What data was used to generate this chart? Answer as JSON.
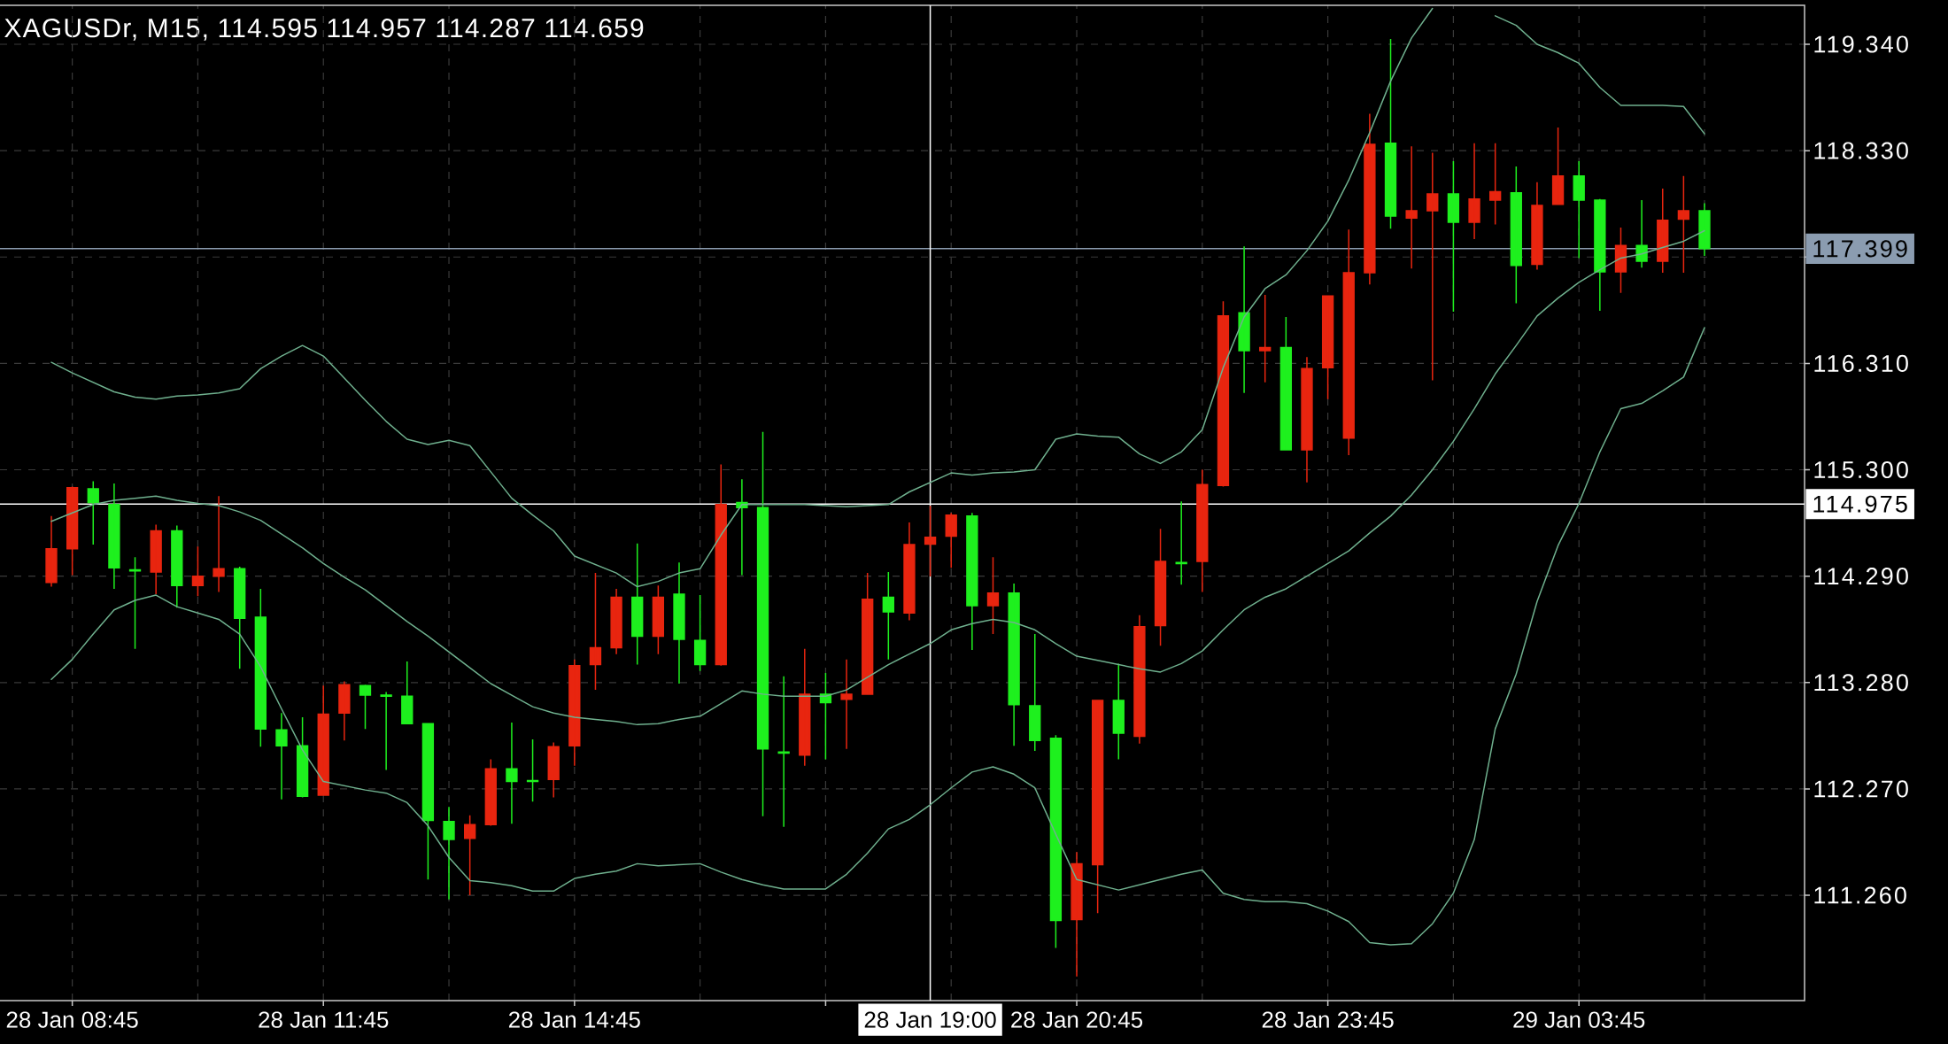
{
  "chart_data": {
    "type": "candlestick",
    "title": "XAGUSDr, M15, 114.595 114.957 114.287 114.659",
    "categories": [
      null,
      "28 Jan 08:45",
      null,
      null,
      null,
      null,
      null,
      null,
      null,
      null,
      null,
      null,
      null,
      "28 Jan 11:45",
      null,
      null,
      null,
      null,
      null,
      null,
      null,
      null,
      null,
      null,
      null,
      "28 Jan 14:45",
      null,
      null,
      null,
      null,
      null,
      null,
      null,
      null,
      null,
      null,
      null,
      null,
      null,
      null,
      null,
      null,
      "28 Jan 19:00",
      null,
      null,
      null,
      null,
      null,
      null,
      "28 Jan 20:45",
      null,
      null,
      null,
      null,
      null,
      null,
      null,
      null,
      null,
      null,
      null,
      "28 Jan 23:45",
      null,
      null,
      null,
      null,
      null,
      null,
      null,
      null,
      null,
      null,
      null,
      "29 Jan 03:45",
      null,
      null,
      null,
      null,
      null,
      null
    ],
    "series": [
      {
        "ohlc": [
          [
            114.23,
            114.86,
            114.19,
            114.55
          ],
          [
            114.55,
            115.14,
            114.3,
            115.13
          ],
          [
            115.12,
            115.19,
            114.59,
            114.99
          ],
          [
            114.97,
            115.17,
            114.17,
            114.37
          ],
          [
            114.35,
            114.47,
            113.6,
            114.34
          ],
          [
            114.33,
            114.78,
            114.12,
            114.72
          ],
          [
            114.72,
            114.77,
            113.99,
            114.2
          ],
          [
            114.2,
            114.57,
            114.1,
            114.29
          ],
          [
            114.29,
            115.05,
            114.14,
            114.36
          ],
          [
            114.36,
            114.38,
            113.41,
            113.89
          ],
          [
            113.9,
            114.17,
            112.67,
            112.84
          ],
          [
            112.83,
            112.99,
            112.17,
            112.68
          ],
          [
            112.68,
            112.95,
            112.19,
            112.2
          ],
          [
            112.21,
            113.25,
            112.21,
            112.98
          ],
          [
            112.99,
            113.29,
            112.73,
            113.26
          ],
          [
            113.25,
            113.26,
            112.84,
            113.16
          ],
          [
            113.16,
            113.19,
            112.45,
            113.15
          ],
          [
            113.15,
            113.48,
            112.89,
            112.89
          ],
          [
            112.89,
            112.89,
            111.41,
            111.97
          ],
          [
            111.96,
            112.1,
            111.22,
            111.79
          ],
          [
            111.8,
            112.02,
            111.26,
            111.93
          ],
          [
            111.93,
            112.55,
            111.92,
            112.46
          ],
          [
            112.46,
            112.9,
            111.94,
            112.34
          ],
          [
            112.35,
            112.74,
            112.15,
            112.34
          ],
          [
            112.36,
            112.71,
            112.19,
            112.67
          ],
          [
            112.68,
            113.5,
            112.49,
            113.44
          ],
          [
            113.45,
            114.32,
            113.21,
            113.61
          ],
          [
            113.61,
            114.17,
            113.55,
            114.09
          ],
          [
            114.09,
            114.6,
            113.45,
            113.72
          ],
          [
            113.72,
            114.2,
            113.55,
            114.09
          ],
          [
            114.12,
            114.42,
            113.27,
            113.69
          ],
          [
            113.68,
            114.11,
            113.39,
            113.45
          ],
          [
            113.45,
            115.35,
            113.44,
            114.97
          ],
          [
            114.99,
            115.21,
            114.3,
            114.94
          ],
          [
            114.94,
            115.66,
            112.01,
            112.65
          ],
          [
            112.62,
            113.34,
            111.91,
            112.61
          ],
          [
            112.59,
            113.6,
            112.49,
            113.17
          ],
          [
            113.17,
            113.37,
            112.55,
            113.09
          ],
          [
            113.12,
            113.5,
            112.65,
            113.17
          ],
          [
            113.17,
            114.32,
            113.17,
            114.07
          ],
          [
            114.09,
            114.33,
            113.5,
            113.95
          ],
          [
            113.94,
            114.8,
            113.87,
            114.59
          ],
          [
            114.595,
            114.957,
            114.287,
            114.659
          ],
          [
            114.67,
            114.89,
            114.37,
            114.87
          ],
          [
            114.86,
            114.89,
            113.59,
            114.01
          ],
          [
            114.01,
            114.47,
            113.74,
            114.13
          ],
          [
            114.13,
            114.22,
            112.68,
            113.07
          ],
          [
            113.06,
            113.74,
            112.63,
            112.73
          ],
          [
            112.75,
            112.78,
            110.76,
            111.02
          ],
          [
            111.03,
            111.67,
            110.49,
            111.56
          ],
          [
            111.55,
            113.11,
            111.09,
            113.11
          ],
          [
            113.11,
            113.46,
            112.55,
            112.8
          ],
          [
            112.77,
            113.92,
            112.7,
            113.81
          ],
          [
            113.82,
            114.74,
            113.63,
            114.43
          ],
          [
            114.42,
            115.0,
            114.21,
            114.41
          ],
          [
            114.43,
            115.3,
            114.14,
            115.16
          ],
          [
            115.15,
            116.9,
            115.14,
            116.76
          ],
          [
            116.79,
            117.42,
            116.03,
            116.43
          ],
          [
            116.43,
            116.96,
            116.13,
            116.46
          ],
          [
            116.46,
            116.75,
            115.49,
            115.49
          ],
          [
            115.49,
            116.37,
            115.18,
            116.26
          ],
          [
            116.27,
            116.95,
            115.97,
            116.95
          ],
          [
            115.6,
            117.58,
            115.44,
            117.17
          ],
          [
            117.17,
            118.68,
            117.06,
            118.39
          ],
          [
            118.4,
            119.39,
            117.59,
            117.71
          ],
          [
            117.69,
            118.37,
            117.21,
            117.76
          ],
          [
            117.76,
            118.31,
            116.15,
            117.92
          ],
          [
            117.92,
            118.23,
            116.8,
            117.65
          ],
          [
            117.65,
            118.4,
            117.49,
            117.87
          ],
          [
            117.86,
            118.4,
            117.63,
            117.94
          ],
          [
            117.93,
            118.18,
            116.88,
            117.24
          ],
          [
            117.25,
            118.03,
            117.2,
            117.81
          ],
          [
            117.82,
            118.55,
            117.82,
            118.09
          ],
          [
            118.09,
            118.23,
            117.31,
            117.86
          ],
          [
            117.86,
            117.87,
            116.81,
            117.18
          ],
          [
            117.18,
            117.6,
            116.98,
            117.43
          ],
          [
            117.43,
            117.86,
            117.22,
            117.28
          ],
          [
            117.28,
            117.97,
            117.17,
            117.67
          ],
          [
            117.68,
            118.09,
            117.17,
            117.76
          ],
          [
            117.76,
            117.83,
            117.33,
            117.4
          ]
        ],
        "colors": [
          "#e8250f",
          "#e8250f",
          "#1ef01e",
          "#1ef01e",
          "#1ef01e",
          "#e8250f",
          "#1ef01e",
          "#e8250f",
          "#e8250f",
          "#1ef01e",
          "#1ef01e",
          "#1ef01e",
          "#1ef01e",
          "#e8250f",
          "#e8250f",
          "#1ef01e",
          "#1ef01e",
          "#1ef01e",
          "#1ef01e",
          "#1ef01e",
          "#e8250f",
          "#e8250f",
          "#1ef01e",
          "#1ef01e",
          "#e8250f",
          "#e8250f",
          "#e8250f",
          "#e8250f",
          "#1ef01e",
          "#e8250f",
          "#1ef01e",
          "#1ef01e",
          "#e8250f",
          "#1ef01e",
          "#1ef01e",
          "#1ef01e",
          "#e8250f",
          "#1ef01e",
          "#e8250f",
          "#e8250f",
          "#1ef01e",
          "#e8250f",
          "#e8250f",
          "#e8250f",
          "#1ef01e",
          "#e8250f",
          "#1ef01e",
          "#1ef01e",
          "#1ef01e",
          "#e8250f",
          "#e8250f",
          "#1ef01e",
          "#e8250f",
          "#e8250f",
          "#1ef01e",
          "#e8250f",
          "#e8250f",
          "#1ef01e",
          "#e8250f",
          "#1ef01e",
          "#e8250f",
          "#e8250f",
          "#e8250f",
          "#e8250f",
          "#1ef01e",
          "#e8250f",
          "#e8250f",
          "#1ef01e",
          "#e8250f",
          "#e8250f",
          "#1ef01e",
          "#e8250f",
          "#e8250f",
          "#1ef01e",
          "#1ef01e",
          "#e8250f",
          "#1ef01e",
          "#e8250f",
          "#e8250f",
          "#1ef01e"
        ]
      },
      {
        "type": "line",
        "color": "#6fb08e",
        "values": [
          116.32,
          116.22,
          116.13,
          116.04,
          115.99,
          115.97,
          116.0,
          116.01,
          116.03,
          116.07,
          116.26,
          116.38,
          116.48,
          116.38,
          116.17,
          115.96,
          115.76,
          115.59,
          115.54,
          115.58,
          115.53,
          115.28,
          115.03,
          114.87,
          114.72,
          114.48,
          114.4,
          114.32,
          114.19,
          114.24,
          114.32,
          114.36,
          114.68,
          114.97,
          114.97,
          114.97,
          114.97,
          114.96,
          114.95,
          114.96,
          114.97,
          115.09,
          115.18,
          115.27,
          115.25,
          115.27,
          115.28,
          115.3,
          115.59,
          115.64,
          115.62,
          115.61,
          115.45,
          115.36,
          115.47,
          115.68,
          116.27,
          116.75,
          117.02,
          117.15,
          117.38,
          117.66,
          118.05,
          118.5,
          118.99,
          119.4,
          119.68,
          null,
          null,
          119.61,
          119.52,
          119.34,
          119.26,
          119.16,
          118.93,
          118.76,
          118.76,
          118.76,
          118.75,
          118.49
        ]
      },
      {
        "type": "line",
        "color": "#6fb08e",
        "values": [
          114.81,
          114.89,
          114.97,
          115.01,
          115.03,
          115.05,
          115.01,
          114.98,
          114.96,
          114.9,
          114.82,
          114.69,
          114.56,
          114.41,
          114.28,
          114.16,
          114.01,
          113.86,
          113.72,
          113.57,
          113.42,
          113.27,
          113.16,
          113.05,
          112.99,
          112.95,
          112.93,
          112.91,
          112.88,
          112.89,
          112.93,
          112.96,
          113.08,
          113.2,
          113.17,
          113.15,
          113.15,
          113.15,
          113.21,
          113.33,
          113.45,
          113.55,
          113.65,
          113.78,
          113.84,
          113.88,
          113.85,
          113.78,
          113.65,
          113.53,
          113.49,
          113.45,
          113.41,
          113.38,
          113.46,
          113.58,
          113.78,
          113.97,
          114.09,
          114.17,
          114.29,
          114.41,
          114.53,
          114.7,
          114.86,
          115.06,
          115.3,
          115.57,
          115.88,
          116.21,
          116.48,
          116.76,
          116.93,
          117.08,
          117.2,
          117.31,
          117.35,
          117.41,
          117.47,
          117.57
        ]
      },
      {
        "type": "line",
        "color": "#6fb08e",
        "values": [
          113.31,
          113.5,
          113.74,
          113.97,
          114.06,
          114.11,
          114.0,
          113.94,
          113.88,
          113.74,
          113.43,
          113.03,
          112.64,
          112.34,
          112.3,
          112.26,
          112.23,
          112.14,
          111.92,
          111.62,
          111.4,
          111.38,
          111.35,
          111.3,
          111.3,
          111.42,
          111.46,
          111.49,
          111.56,
          111.54,
          111.55,
          111.56,
          111.48,
          111.41,
          111.36,
          111.32,
          111.32,
          111.32,
          111.46,
          111.66,
          111.89,
          111.98,
          112.12,
          112.28,
          112.43,
          112.48,
          112.41,
          112.28,
          111.84,
          111.41,
          111.36,
          111.31,
          111.36,
          111.41,
          111.46,
          111.5,
          111.28,
          111.22,
          111.2,
          111.2,
          111.18,
          111.11,
          111.01,
          110.81,
          110.79,
          110.8,
          110.99,
          111.28,
          111.79,
          112.84,
          113.36,
          114.05,
          114.58,
          114.98,
          115.47,
          115.88,
          115.93,
          116.05,
          116.18,
          116.65
        ]
      }
    ],
    "ylim": [
      110.26,
      119.71
    ],
    "yticks": [
      {
        "value": 111.26,
        "label": "111.260"
      },
      {
        "value": 112.27,
        "label": "112.270"
      },
      {
        "value": 113.28,
        "label": "113.280"
      },
      {
        "value": 114.29,
        "label": "114.290"
      },
      {
        "value": 115.3,
        "label": "115.300"
      },
      {
        "value": 116.31,
        "label": "116.310"
      },
      {
        "value": 117.32,
        "label": null
      },
      {
        "value": 118.33,
        "label": "118.330"
      },
      {
        "value": 119.34,
        "label": "119.340"
      }
    ],
    "grid": true,
    "ref_lines": [
      {
        "axis": "y",
        "value": 117.399,
        "label": "117.399",
        "color": "#8b9cb0"
      },
      {
        "axis": "y",
        "value": 114.975,
        "label": "114.975",
        "color": "#ffffff"
      },
      {
        "axis": "x",
        "value": "28 Jan 19:00",
        "color": "#ffffff"
      }
    ]
  }
}
